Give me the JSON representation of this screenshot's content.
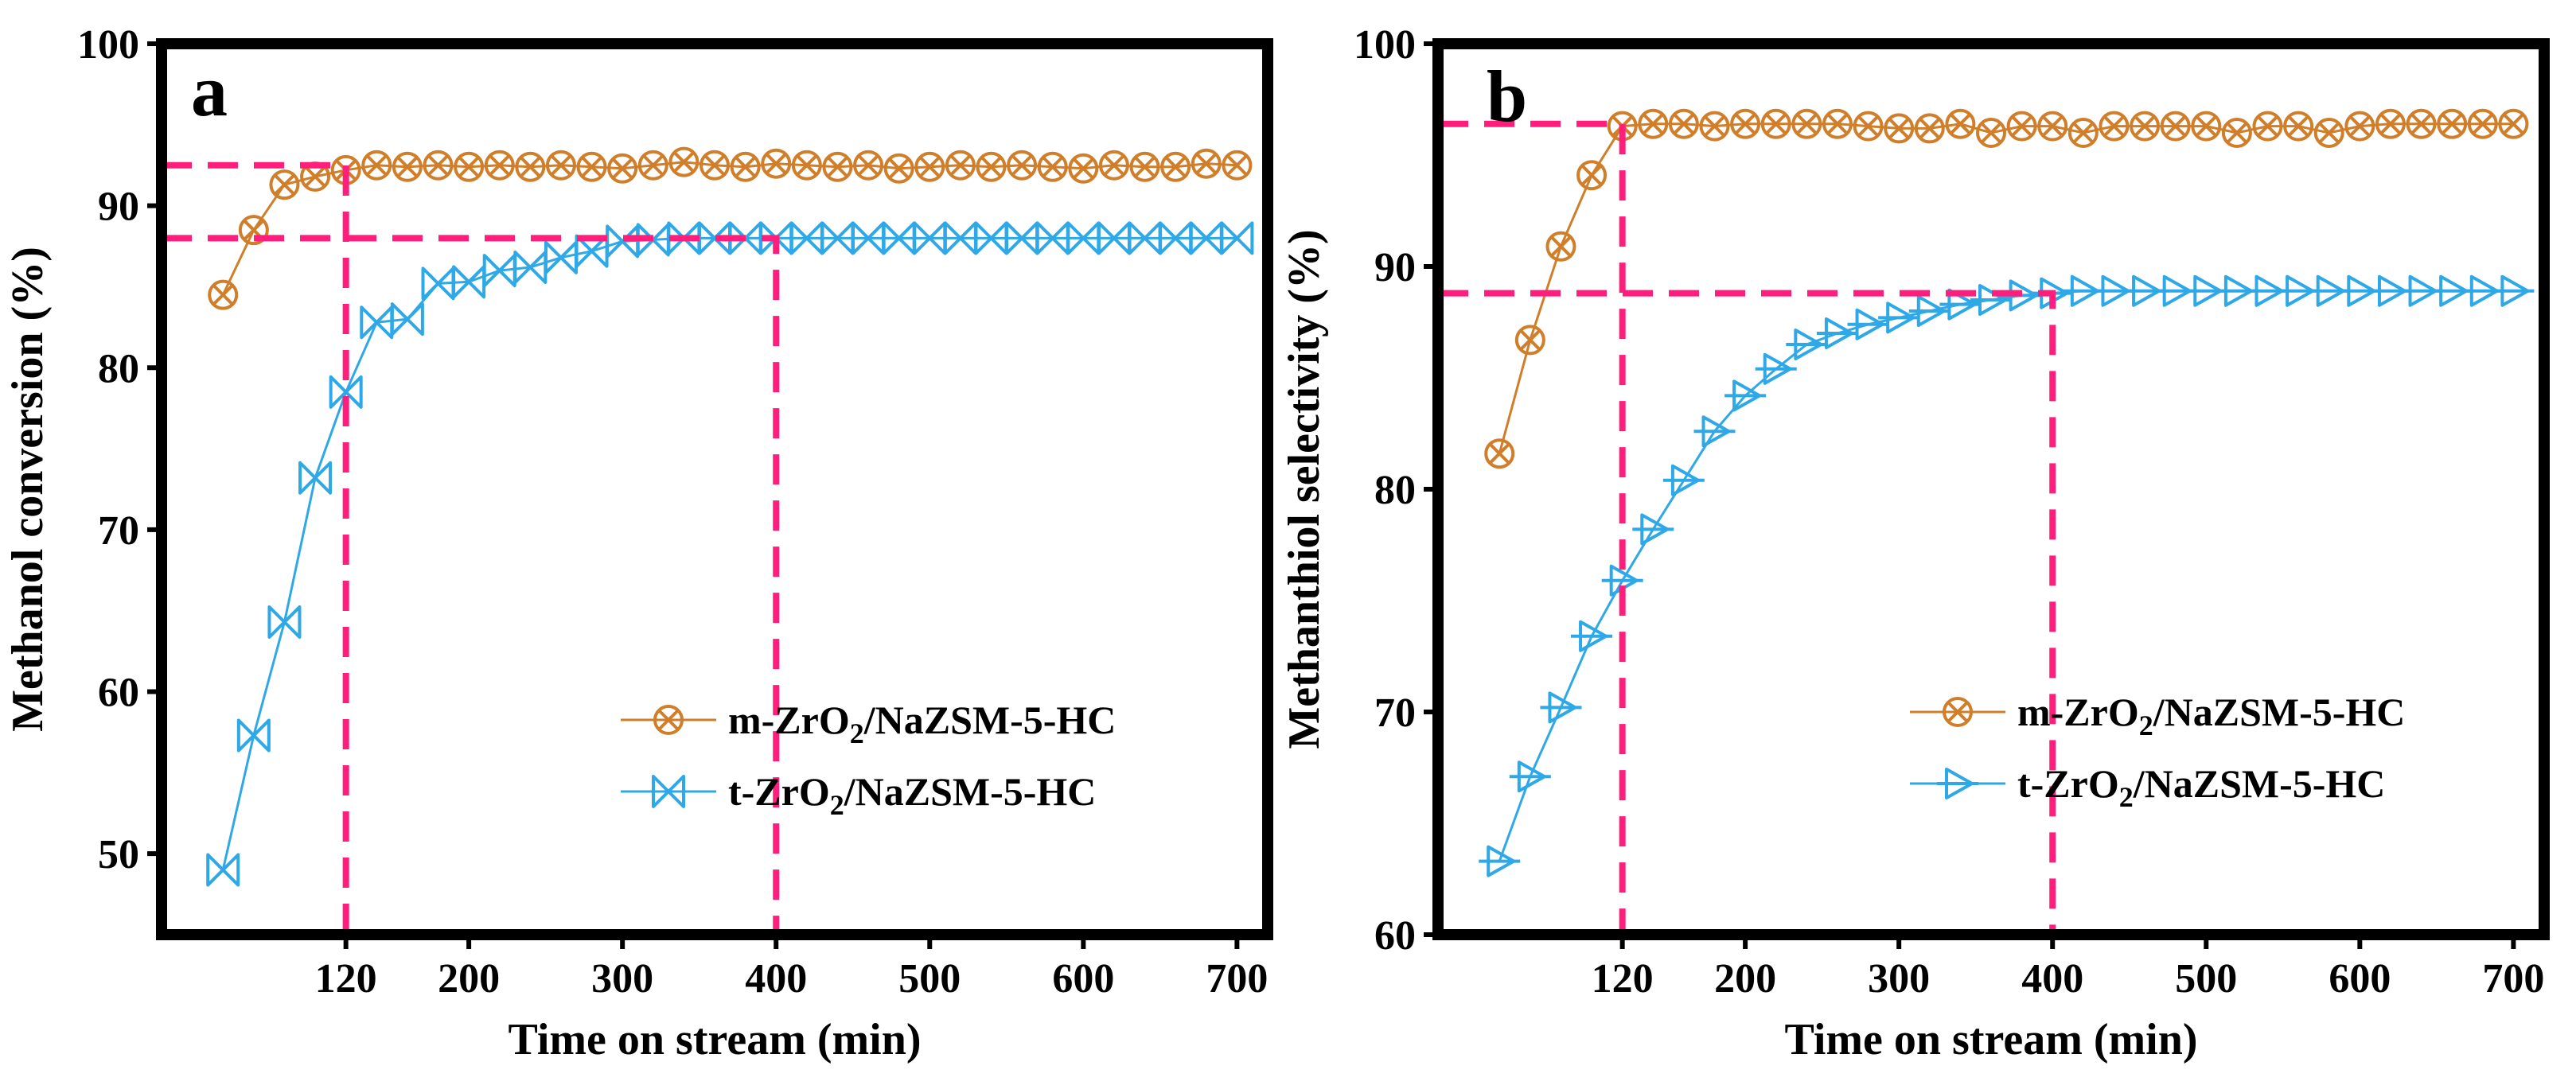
{
  "chart_data": [
    {
      "type": "line",
      "panel_label": "a",
      "xlabel": "Time on stream (min)",
      "ylabel": "Methanol conversion (%)",
      "xlim": [
        0,
        720
      ],
      "ylim": [
        45,
        100
      ],
      "x_ticks": [
        120,
        200,
        300,
        400,
        500,
        600,
        700
      ],
      "y_ticks": [
        50,
        60,
        70,
        80,
        90,
        100
      ],
      "legend_position": "center-right",
      "reference_lines": [
        {
          "x": 120,
          "y": 92.5
        },
        {
          "x": 400,
          "y": 88
        }
      ],
      "series": [
        {
          "name": "m-ZrO2/NaZSM-5-HC",
          "legend_main": "m-ZrO",
          "legend_sub": "2",
          "legend_rest": "/NaZSM-5-HC",
          "color": "#D07E2A",
          "marker": "circle-x",
          "x": [
            40,
            60,
            80,
            100,
            120,
            140,
            160,
            180,
            200,
            220,
            240,
            260,
            280,
            300,
            320,
            340,
            360,
            380,
            400,
            420,
            440,
            460,
            480,
            500,
            520,
            540,
            560,
            580,
            600,
            620,
            640,
            660,
            680,
            700
          ],
          "y": [
            84.5,
            88.5,
            91.3,
            91.8,
            92.2,
            92.5,
            92.4,
            92.5,
            92.4,
            92.5,
            92.4,
            92.5,
            92.4,
            92.3,
            92.5,
            92.7,
            92.5,
            92.4,
            92.6,
            92.5,
            92.4,
            92.5,
            92.3,
            92.4,
            92.5,
            92.4,
            92.5,
            92.4,
            92.3,
            92.5,
            92.4,
            92.4,
            92.6,
            92.5
          ]
        },
        {
          "name": "t-ZrO2/NaZSM-5-HC",
          "legend_main": "t-ZrO",
          "legend_sub": "2",
          "legend_rest": "/NaZSM-5-HC",
          "color": "#2EA8E6",
          "marker": "x-triangles",
          "x": [
            40,
            60,
            80,
            100,
            120,
            140,
            160,
            180,
            200,
            220,
            240,
            260,
            280,
            300,
            320,
            340,
            360,
            380,
            400,
            420,
            440,
            460,
            480,
            500,
            520,
            540,
            560,
            580,
            600,
            620,
            640,
            660,
            680,
            700
          ],
          "y": [
            49.0,
            57.3,
            64.3,
            73.2,
            78.5,
            82.8,
            83.0,
            85.2,
            85.3,
            86.0,
            86.2,
            86.8,
            87.2,
            87.8,
            87.9,
            88.0,
            88.0,
            88.0,
            88.0,
            88.0,
            88.0,
            88.0,
            88.0,
            88.0,
            88.0,
            88.0,
            88.0,
            88.0,
            88.0,
            88.0,
            88.0,
            88.0,
            88.0,
            88.0
          ]
        }
      ]
    },
    {
      "type": "line",
      "panel_label": "b",
      "xlabel": "Time on stream (min)",
      "ylabel": "Methanthiol selectivity (%)",
      "xlim": [
        0,
        720
      ],
      "ylim": [
        60,
        100
      ],
      "x_ticks": [
        120,
        200,
        300,
        400,
        500,
        600,
        700
      ],
      "y_ticks": [
        60,
        70,
        80,
        90,
        100
      ],
      "legend_position": "center-right",
      "reference_lines": [
        {
          "x": 120,
          "y": 96.4
        },
        {
          "x": 400,
          "y": 88.8
        }
      ],
      "series": [
        {
          "name": "m-ZrO2/NaZSM-5-HC",
          "legend_main": "m-ZrO",
          "legend_sub": "2",
          "legend_rest": "/NaZSM-5-HC",
          "color": "#D07E2A",
          "marker": "circle-x",
          "x": [
            40,
            60,
            80,
            100,
            120,
            140,
            160,
            180,
            200,
            220,
            240,
            260,
            280,
            300,
            320,
            340,
            360,
            380,
            400,
            420,
            440,
            460,
            480,
            500,
            520,
            540,
            560,
            580,
            600,
            620,
            640,
            660,
            680,
            700
          ],
          "y": [
            81.6,
            86.7,
            90.9,
            94.1,
            96.3,
            96.4,
            96.4,
            96.3,
            96.4,
            96.4,
            96.4,
            96.4,
            96.3,
            96.2,
            96.2,
            96.4,
            96.0,
            96.3,
            96.3,
            96.0,
            96.3,
            96.3,
            96.3,
            96.3,
            96.0,
            96.3,
            96.3,
            96.0,
            96.3,
            96.4,
            96.4,
            96.4,
            96.4,
            96.4
          ]
        },
        {
          "name": "t-ZrO2/NaZSM-5-HC",
          "legend_main": "t-ZrO",
          "legend_sub": "2",
          "legend_rest": "/NaZSM-5-HC",
          "color": "#2EA8E6",
          "marker": "triangle-right",
          "x": [
            40,
            60,
            80,
            100,
            120,
            140,
            160,
            180,
            200,
            220,
            240,
            260,
            280,
            300,
            320,
            340,
            360,
            380,
            400,
            420,
            440,
            460,
            480,
            500,
            520,
            540,
            560,
            580,
            600,
            620,
            640,
            660,
            680,
            700
          ],
          "y": [
            63.3,
            67.1,
            70.2,
            73.4,
            75.9,
            78.2,
            80.4,
            82.6,
            84.2,
            85.4,
            86.5,
            87.0,
            87.4,
            87.7,
            88.0,
            88.3,
            88.5,
            88.7,
            88.8,
            88.9,
            88.9,
            88.9,
            88.9,
            88.9,
            88.9,
            88.9,
            88.9,
            88.9,
            88.9,
            88.9,
            88.9,
            88.9,
            88.9,
            88.9
          ]
        }
      ]
    }
  ]
}
